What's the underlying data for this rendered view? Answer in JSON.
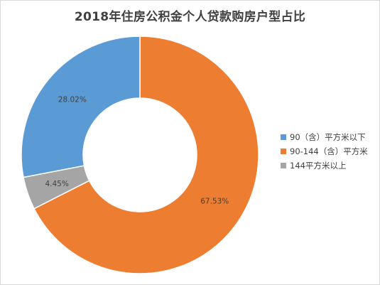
{
  "chart_data": {
    "type": "pie",
    "donut": true,
    "title": "2018年住房公积金个人贷款购房户型占比",
    "categories": [
      "90（含）平方米以下",
      "90-144（含）平方米",
      "144平方米以上"
    ],
    "values": [
      28.02,
      67.53,
      4.45
    ],
    "value_labels": [
      "28.02%",
      "67.53%",
      "4.45%"
    ],
    "colors": [
      "#5b9bd5",
      "#ed7d31",
      "#a5a5a5"
    ],
    "slice_order_clockwise_from_top": [
      1,
      2,
      0
    ],
    "legend_position": "right",
    "grid": false
  }
}
